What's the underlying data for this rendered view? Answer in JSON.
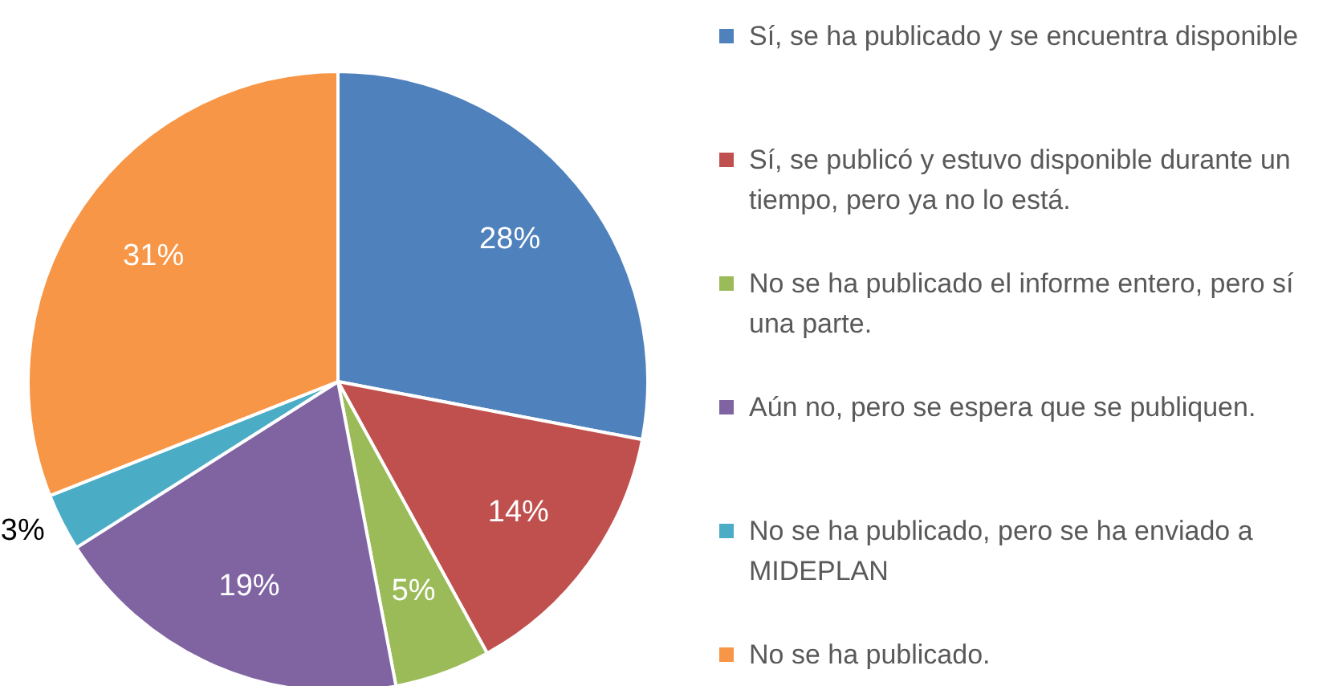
{
  "chart_data": {
    "type": "pie",
    "categories": [
      "Sí, se ha publicado y se encuentra disponible",
      "Sí, se publicó y estuvo disponible durante un tiempo, pero ya no lo está.",
      "No se ha publicado el informe entero, pero sí una parte.",
      "Aún no, pero se espera que se publiquen.",
      "No se ha publicado, pero se ha enviado a MIDEPLAN",
      "No se ha publicado."
    ],
    "values": [
      28,
      14,
      5,
      19,
      3,
      31
    ],
    "colors": [
      "#4f81bd",
      "#c0504d",
      "#9bbb59",
      "#8064a2",
      "#4bacc6",
      "#f79646"
    ],
    "value_labels": [
      "28%",
      "14%",
      "5%",
      "19%",
      "3%",
      "31%"
    ],
    "legend": "right"
  }
}
